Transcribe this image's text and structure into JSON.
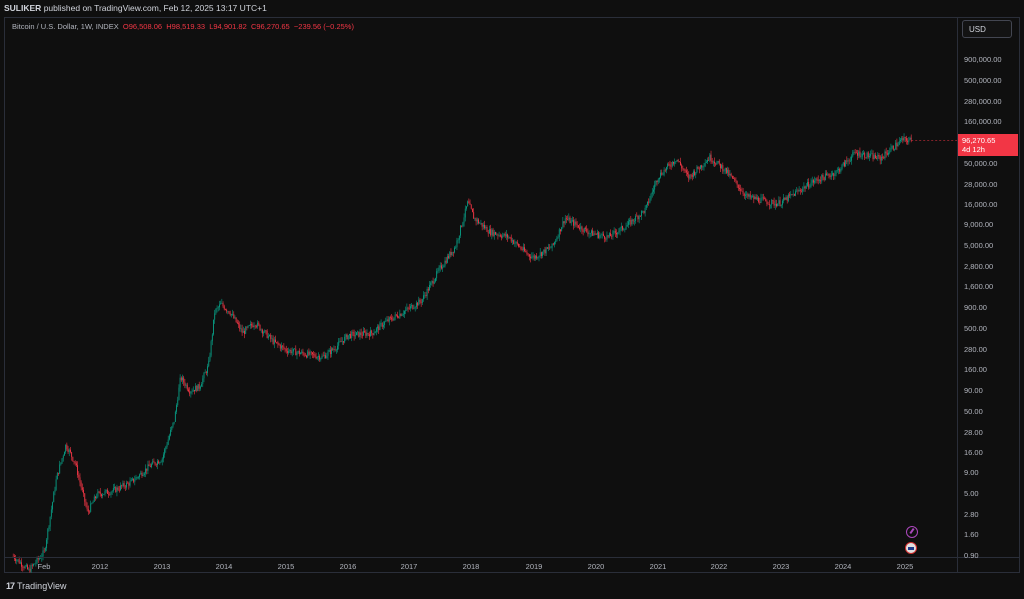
{
  "header": {
    "publisher": "SULIKER",
    "published_text": "published on TradingView.com, Feb 12, 2025 13:17 UTC+1"
  },
  "legend": {
    "symbol": "Bitcoin / U.S. Dollar, 1W, INDEX",
    "open": "O96,508.06",
    "high": "H98,519.33",
    "low": "L94,901.82",
    "close": "C96,270.65",
    "change": "−239.56 (−0.25%)"
  },
  "currency_button": "USD",
  "price_tag": {
    "price": "96,270.65",
    "countdown": "4d 12h"
  },
  "colors": {
    "up": "#089981",
    "down": "#f23645",
    "background": "#0f0f0f"
  },
  "price_axis": {
    "scale": "log",
    "ticks": [
      "900,000.00",
      "500,000.00",
      "280,000.00",
      "160,000.00",
      "50,000.00",
      "28,000.00",
      "16,000.00",
      "9,000.00",
      "5,000.00",
      "2,800.00",
      "1,600.00",
      "900.00",
      "500.00",
      "280.00",
      "160.00",
      "90.00",
      "50.00",
      "28.00",
      "16.00",
      "9.00",
      "5.00",
      "2.80",
      "1.60",
      "0.90"
    ]
  },
  "time_axis": {
    "ticks": [
      "Feb",
      "2012",
      "2013",
      "2014",
      "2015",
      "2016",
      "2017",
      "2018",
      "2019",
      "2020",
      "2021",
      "2022",
      "2023",
      "2024",
      "2025"
    ]
  },
  "footer": {
    "logo_text": "17",
    "brand": "TradingView"
  },
  "chart_data": {
    "type": "line",
    "title": "Bitcoin / U.S. Dollar, 1W, INDEX",
    "xlabel": "",
    "ylabel": "",
    "y_scale": "log",
    "x": [
      2010.6,
      2010.85,
      2011.1,
      2011.3,
      2011.45,
      2011.6,
      2011.8,
      2011.95,
      2012.2,
      2012.5,
      2012.8,
      2013.0,
      2013.2,
      2013.3,
      2013.45,
      2013.6,
      2013.75,
      2013.85,
      2013.95,
      2014.1,
      2014.3,
      2014.5,
      2014.8,
      2015.0,
      2015.3,
      2015.6,
      2015.8,
      2016.0,
      2016.4,
      2016.6,
      2016.9,
      2017.2,
      2017.5,
      2017.75,
      2017.95,
      2018.05,
      2018.3,
      2018.6,
      2018.9,
      2019.0,
      2019.3,
      2019.5,
      2019.9,
      2020.2,
      2020.5,
      2020.8,
      2021.0,
      2021.3,
      2021.5,
      2021.85,
      2022.1,
      2022.45,
      2022.9,
      2023.0,
      2023.5,
      2023.9,
      2024.2,
      2024.6,
      2024.95,
      2025.1
    ],
    "close": [
      0.9,
      0.6,
      1.0,
      8.0,
      20.0,
      12.0,
      3.0,
      5.0,
      5.5,
      7.0,
      11.0,
      13.5,
      40.0,
      130.0,
      90.0,
      100.0,
      180.0,
      800.0,
      1000.0,
      800.0,
      450.0,
      600.0,
      350.0,
      280.0,
      250.0,
      230.0,
      300.0,
      420.0,
      450.0,
      600.0,
      800.0,
      1100.0,
      2700.0,
      5000.0,
      17000.0,
      11000.0,
      7500.0,
      6500.0,
      4000.0,
      3700.0,
      5000.0,
      11000.0,
      7300.0,
      6500.0,
      9000.0,
      14000.0,
      35000.0,
      58000.0,
      34000.0,
      60000.0,
      42000.0,
      20000.0,
      16500.0,
      17000.0,
      30000.0,
      40000.0,
      68000.0,
      58000.0,
      97000.0,
      96270.65
    ]
  }
}
